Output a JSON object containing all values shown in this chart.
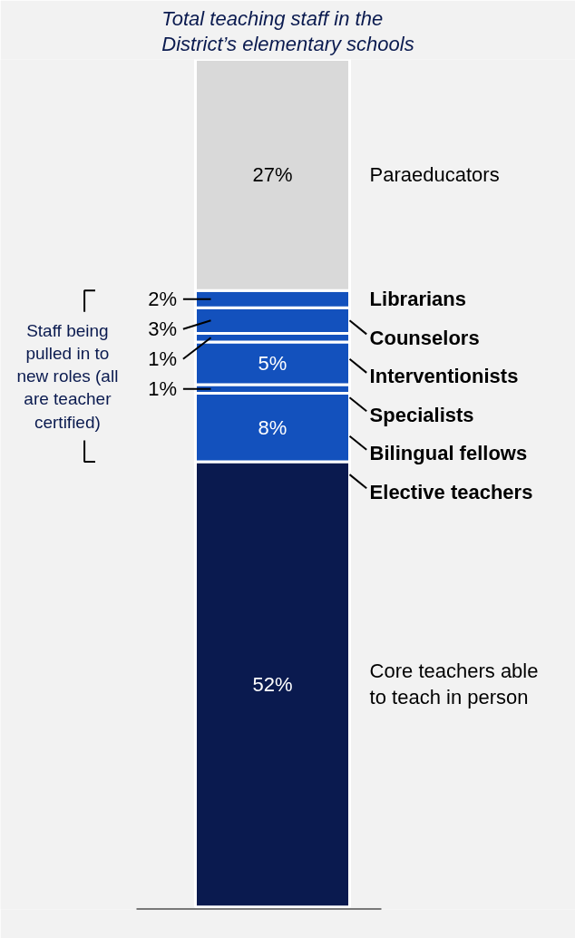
{
  "chart_data": {
    "type": "bar",
    "stacked": true,
    "title": "Total teaching staff in the\nDistrict’s elementary schools",
    "categories": [
      null
    ],
    "grid": false,
    "series": [
      {
        "name": "Core teachers able to teach in person",
        "color": "#0a1a4f",
        "values": [
          52
        ],
        "value_labels": [
          "52%"
        ]
      },
      {
        "name": "Elective teachers",
        "color": "#1351bd",
        "values": [
          8
        ],
        "value_labels": [
          "8%"
        ]
      },
      {
        "name": "Bilingual fellows",
        "color": "#1351bd",
        "values": [
          1
        ],
        "value_labels": [
          "1%"
        ]
      },
      {
        "name": "Specialists",
        "color": "#1351bd",
        "values": [
          5
        ],
        "value_labels": [
          "5%"
        ]
      },
      {
        "name": "Interventionists",
        "color": "#1351bd",
        "values": [
          1
        ],
        "value_labels": [
          "1%"
        ]
      },
      {
        "name": "Counselors",
        "color": "#1351bd",
        "values": [
          3
        ],
        "value_labels": [
          "3%"
        ]
      },
      {
        "name": "Librarians",
        "color": "#1351bd",
        "values": [
          2
        ],
        "value_labels": [
          "2%"
        ]
      },
      {
        "name": "Paraeducators",
        "color": "#d9d9d9",
        "values": [
          27
        ],
        "value_labels": [
          "27%"
        ]
      }
    ],
    "annotations": [
      "Staff being pulled in to new roles (all are teacher certified)"
    ]
  }
}
